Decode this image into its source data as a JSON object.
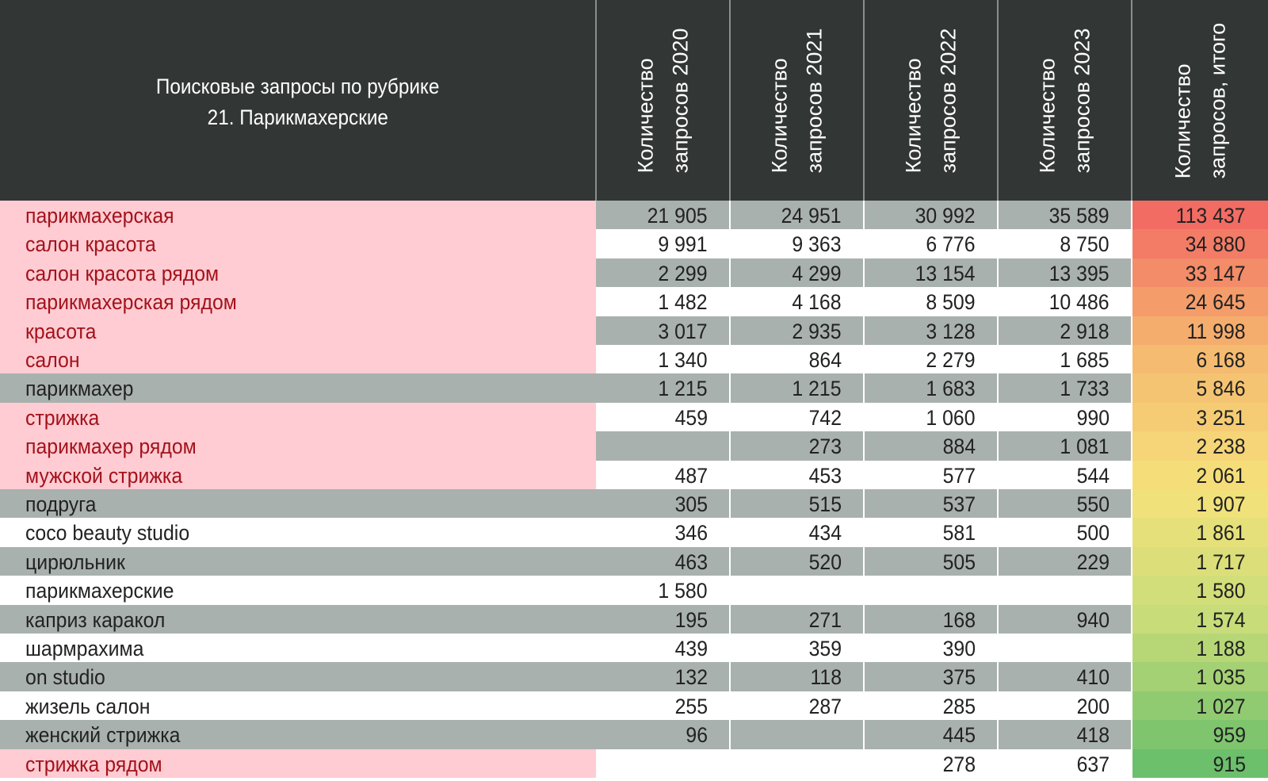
{
  "chart_data": {
    "type": "table",
    "title_lines": [
      "Поисковые запросы по рубрике",
      "21. Парикмахерские"
    ],
    "columns": [
      {
        "lines": [
          "Количество",
          "запросов 2020"
        ]
      },
      {
        "lines": [
          "Количество",
          "запросов 2021"
        ]
      },
      {
        "lines": [
          "Количество",
          "запросов 2022"
        ]
      },
      {
        "lines": [
          "Количество",
          "запросов 2023"
        ]
      },
      {
        "lines": [
          "Количество",
          "запросов, итого"
        ]
      }
    ],
    "rows": [
      {
        "label": "парикмахерская",
        "highlight": true,
        "values": [
          "21 905",
          "24 951",
          "30 992",
          "35 589",
          "113 437"
        ]
      },
      {
        "label": "салон красота",
        "highlight": true,
        "values": [
          "9 991",
          "9 363",
          "6 776",
          "8 750",
          "34 880"
        ]
      },
      {
        "label": "салон красота рядом",
        "highlight": true,
        "values": [
          "2 299",
          "4 299",
          "13 154",
          "13 395",
          "33 147"
        ]
      },
      {
        "label": "парикмахерская рядом",
        "highlight": true,
        "values": [
          "1 482",
          "4 168",
          "8 509",
          "10 486",
          "24 645"
        ]
      },
      {
        "label": "красота",
        "highlight": true,
        "values": [
          "3 017",
          "2 935",
          "3 128",
          "2 918",
          "11 998"
        ]
      },
      {
        "label": "салон",
        "highlight": true,
        "values": [
          "1 340",
          "864",
          "2 279",
          "1 685",
          "6 168"
        ]
      },
      {
        "label": "парикмахер",
        "highlight": false,
        "values": [
          "1 215",
          "1 215",
          "1 683",
          "1 733",
          "5 846"
        ]
      },
      {
        "label": "стрижка",
        "highlight": true,
        "values": [
          "459",
          "742",
          "1 060",
          "990",
          "3 251"
        ]
      },
      {
        "label": "парикмахер рядом",
        "highlight": true,
        "values": [
          "",
          "273",
          "884",
          "1 081",
          "2 238"
        ]
      },
      {
        "label": "мужской стрижка",
        "highlight": true,
        "values": [
          "487",
          "453",
          "577",
          "544",
          "2 061"
        ]
      },
      {
        "label": "подруга",
        "highlight": false,
        "values": [
          "305",
          "515",
          "537",
          "550",
          "1 907"
        ]
      },
      {
        "label": "coco beauty studio",
        "highlight": false,
        "values": [
          "346",
          "434",
          "581",
          "500",
          "1 861"
        ]
      },
      {
        "label": "цирюльник",
        "highlight": false,
        "values": [
          "463",
          "520",
          "505",
          "229",
          "1 717"
        ]
      },
      {
        "label": "парикмахерские",
        "highlight": false,
        "values": [
          "1 580",
          "",
          "",
          "",
          "1 580"
        ]
      },
      {
        "label": "каприз каракол",
        "highlight": false,
        "values": [
          "195",
          "271",
          "168",
          "940",
          "1 574"
        ]
      },
      {
        "label": "шармрахима",
        "highlight": false,
        "values": [
          "439",
          "359",
          "390",
          "",
          "1 188"
        ]
      },
      {
        "label": "on studio",
        "highlight": false,
        "values": [
          "132",
          "118",
          "375",
          "410",
          "1 035"
        ]
      },
      {
        "label": "жизель салон",
        "highlight": false,
        "values": [
          "255",
          "287",
          "285",
          "200",
          "1 027"
        ]
      },
      {
        "label": "женский стрижка",
        "highlight": false,
        "values": [
          "96",
          "",
          "445",
          "418",
          "959"
        ]
      },
      {
        "label": "стрижка рядом",
        "highlight": true,
        "values": [
          "",
          "",
          "278",
          "637",
          "915"
        ]
      }
    ]
  },
  "colors": {
    "header_bg": "#323635",
    "header_text": "#ffffff",
    "highlight_bg": "#ffccd3",
    "highlight_text": "#a3121b",
    "band_gray": "#a9b1ae",
    "band_white": "#ffffff",
    "normal_text": "#222222",
    "total_scale": [
      "#f26c63",
      "#f5b96f",
      "#f5e27a",
      "#c5dc79",
      "#6cbf6b"
    ]
  }
}
